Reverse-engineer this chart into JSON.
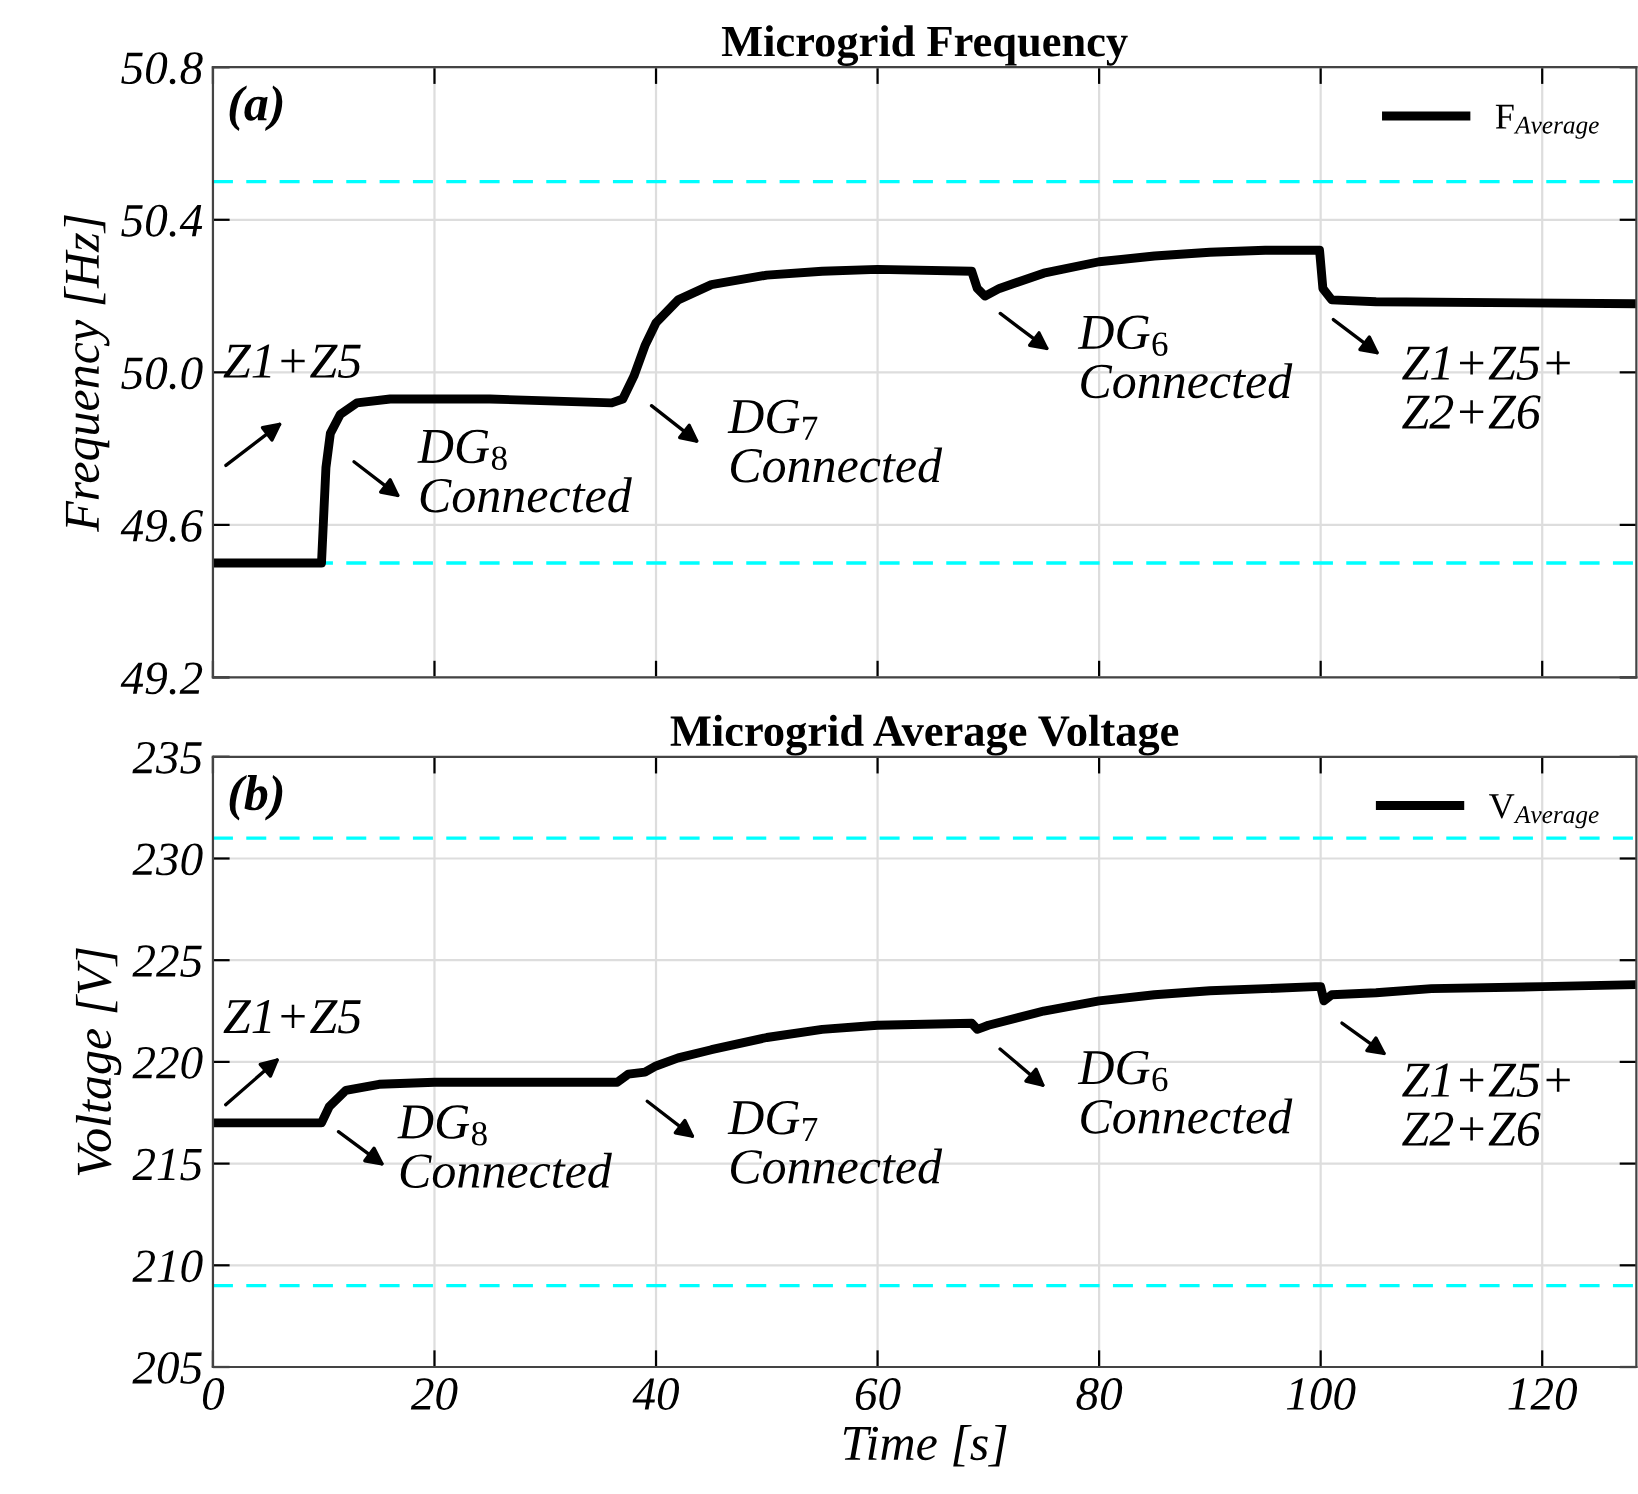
{
  "chart_data": [
    {
      "type": "line",
      "title": "Microgrid Frequency",
      "ylabel": "Frequency [Hz]",
      "xlim": [
        0,
        128.5
      ],
      "xticks": [
        0,
        20,
        40,
        60,
        80,
        100,
        120
      ],
      "ylim": [
        49.2,
        50.8
      ],
      "yticks": [
        {
          "value": 49.2,
          "label": "49.2"
        },
        {
          "value": 49.6,
          "label": "49.6"
        },
        {
          "value": 50.0,
          "label": "50.0"
        },
        {
          "value": 50.4,
          "label": "50.4"
        },
        {
          "value": 50.8,
          "label": "50.8"
        }
      ],
      "tick_labels": "y",
      "grid": true,
      "legend": "top right",
      "line_style": "solid",
      "marker": "none",
      "x": [
        0,
        9.5,
        9.8,
        10.2,
        10.6,
        11.5,
        13,
        16,
        25,
        36,
        37,
        38,
        39,
        40,
        42,
        45,
        50,
        55,
        60,
        68.5,
        69,
        69.7,
        71,
        75,
        80,
        85,
        90,
        95,
        99.9,
        100.2,
        101,
        105,
        128.5
      ],
      "series": [
        {
          "name": "F$_{Average}$",
          "color": "#000000",
          "values": [
            49.5,
            49.5,
            49.5,
            49.75,
            49.84,
            49.89,
            49.92,
            49.93,
            49.93,
            49.92,
            49.93,
            49.99,
            50.07,
            50.13,
            50.19,
            50.23,
            50.255,
            50.265,
            50.27,
            50.265,
            50.22,
            50.2,
            50.22,
            50.26,
            50.29,
            50.305,
            50.315,
            50.32,
            50.32,
            50.22,
            50.19,
            50.185,
            50.18
          ]
        }
      ],
      "ref_lines": [
        {
          "axis": "y",
          "value": 50.5,
          "color": "#00ffff",
          "line_style": "dashed"
        },
        {
          "axis": "y",
          "value": 49.5,
          "color": "#00ffff",
          "line_style": "dashed"
        }
      ],
      "annotations": [
        "(a)",
        "Z1+Z5",
        "DG$_{8}$\nConnected",
        "DG$_{7}$\nConnected",
        "DG$_{6}$\nConnected",
        "Z1+Z5+\nZ2+Z6"
      ]
    },
    {
      "type": "line",
      "title": "Microgrid Average Voltage",
      "xlabel": "Time [s]",
      "ylabel": "Voltage [V]",
      "xlim": [
        0,
        128.5
      ],
      "xticks": [
        0,
        20,
        40,
        60,
        80,
        100,
        120
      ],
      "ylim": [
        205,
        235
      ],
      "yticks": [
        205,
        210,
        215,
        220,
        225,
        230,
        235
      ],
      "grid": true,
      "legend": "top right",
      "line_style": "solid",
      "marker": "none",
      "x": [
        0,
        9.5,
        9.8,
        10.5,
        12,
        15,
        20,
        36,
        36.5,
        37.5,
        39,
        40,
        42,
        45,
        50,
        55,
        60,
        68.5,
        69,
        69.5,
        70,
        75,
        80,
        85,
        90,
        95,
        99.5,
        100,
        100.3,
        101,
        105,
        110,
        120,
        128.5
      ],
      "series": [
        {
          "name": "V$_{Average}$",
          "color": "#000000",
          "values": [
            217,
            217,
            217,
            217.8,
            218.6,
            218.9,
            219.0,
            219.0,
            219.0,
            219.4,
            219.5,
            219.8,
            220.2,
            220.6,
            221.2,
            221.6,
            221.8,
            221.9,
            221.6,
            221.7,
            221.8,
            222.5,
            223.0,
            223.3,
            223.5,
            223.6,
            223.7,
            223.7,
            223.0,
            223.3,
            223.4,
            223.6,
            223.7,
            223.8
          ]
        }
      ],
      "ref_lines": [
        {
          "axis": "y",
          "value": 231,
          "color": "#00ffff",
          "line_style": "dashed"
        },
        {
          "axis": "y",
          "value": 209,
          "color": "#00ffff",
          "line_style": "dashed"
        }
      ],
      "annotations": [
        "(b)",
        "Z1+Z5",
        "DG$_{8}$\nConnected",
        "DG$_{7}$\nConnected",
        "DG$_{6}$\nConnected",
        "Z1+Z5+\nZ2+Z6"
      ]
    }
  ]
}
